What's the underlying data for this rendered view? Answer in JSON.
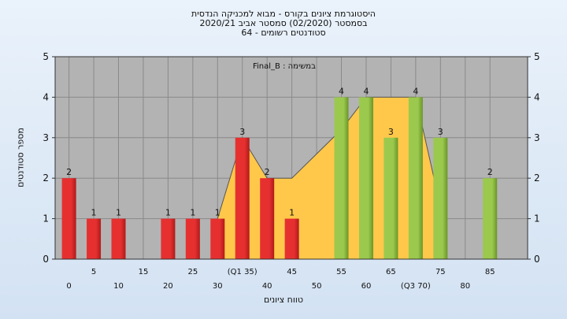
{
  "chart_data": {
    "type": "bar",
    "title": "היסטוגרמת ציונים בקורס - מבוא למכניקה הנדסית",
    "subtitle": "בסמסטר  (02/2020)  סמסטר אביב 2020/21",
    "subtitle2": "סטודנטים רשומים - 64",
    "xlabel": "טווח ציונים",
    "ylabel": "מספר סטודנטים",
    "legend": "Final_B : במשימה",
    "ylim": [
      0,
      5
    ],
    "y_ticks": [
      0,
      1,
      2,
      3,
      4,
      5
    ],
    "grid": true,
    "x_tick_labels": [
      {
        "x": 0,
        "label": "0",
        "row": 2
      },
      {
        "x": 5,
        "label": "5",
        "row": 1
      },
      {
        "x": 10,
        "label": "10",
        "row": 2
      },
      {
        "x": 15,
        "label": "15",
        "row": 1
      },
      {
        "x": 20,
        "label": "20",
        "row": 2
      },
      {
        "x": 25,
        "label": "25",
        "row": 1
      },
      {
        "x": 30,
        "label": "30",
        "row": 2
      },
      {
        "x": 35,
        "label": "(Q1 35)",
        "row": 1
      },
      {
        "x": 40,
        "label": "40",
        "row": 2
      },
      {
        "x": 45,
        "label": "45",
        "row": 1
      },
      {
        "x": 50,
        "label": "50",
        "row": 2
      },
      {
        "x": 55,
        "label": "55",
        "row": 1
      },
      {
        "x": 60,
        "label": "60",
        "row": 2
      },
      {
        "x": 65,
        "label": "65",
        "row": 1
      },
      {
        "x": 70,
        "label": "(Q3 70)",
        "row": 2
      },
      {
        "x": 75,
        "label": "75",
        "row": 1
      },
      {
        "x": 80,
        "label": "80",
        "row": 2
      },
      {
        "x": 85,
        "label": "85",
        "row": 1
      }
    ],
    "bars": [
      {
        "x": 0,
        "value": 2,
        "group": "low"
      },
      {
        "x": 5,
        "value": 1,
        "group": "low"
      },
      {
        "x": 10,
        "value": 1,
        "group": "low"
      },
      {
        "x": 20,
        "value": 1,
        "group": "low"
      },
      {
        "x": 25,
        "value": 1,
        "group": "low"
      },
      {
        "x": 30,
        "value": 1,
        "group": "low"
      },
      {
        "x": 35,
        "value": 3,
        "group": "low"
      },
      {
        "x": 40,
        "value": 2,
        "group": "low"
      },
      {
        "x": 45,
        "value": 1,
        "group": "low"
      },
      {
        "x": 55,
        "value": 4,
        "group": "high"
      },
      {
        "x": 60,
        "value": 4,
        "group": "high"
      },
      {
        "x": 65,
        "value": 3,
        "group": "high"
      },
      {
        "x": 70,
        "value": 4,
        "group": "high"
      },
      {
        "x": 75,
        "value": 3,
        "group": "high"
      },
      {
        "x": 85,
        "value": 2,
        "group": "high"
      }
    ],
    "area": [
      {
        "x": 30,
        "y": 1
      },
      {
        "x": 35,
        "y": 3
      },
      {
        "x": 40,
        "y": 2
      },
      {
        "x": 45,
        "y": 2
      },
      {
        "x": 50,
        "y": 2.6
      },
      {
        "x": 55,
        "y": 3.2
      },
      {
        "x": 60,
        "y": 4
      },
      {
        "x": 65,
        "y": 4
      },
      {
        "x": 70,
        "y": 4
      },
      {
        "x": 75,
        "y": 1.3
      }
    ],
    "colors": {
      "low_bar": "#e63030",
      "low_bar_dark": "#b01a1a",
      "high_bar": "#9bc94d",
      "high_bar_dark": "#6a9628",
      "area": "#ffc84a",
      "plot_bg": "#b3b3b3",
      "grid": "#8a8a8a"
    }
  }
}
